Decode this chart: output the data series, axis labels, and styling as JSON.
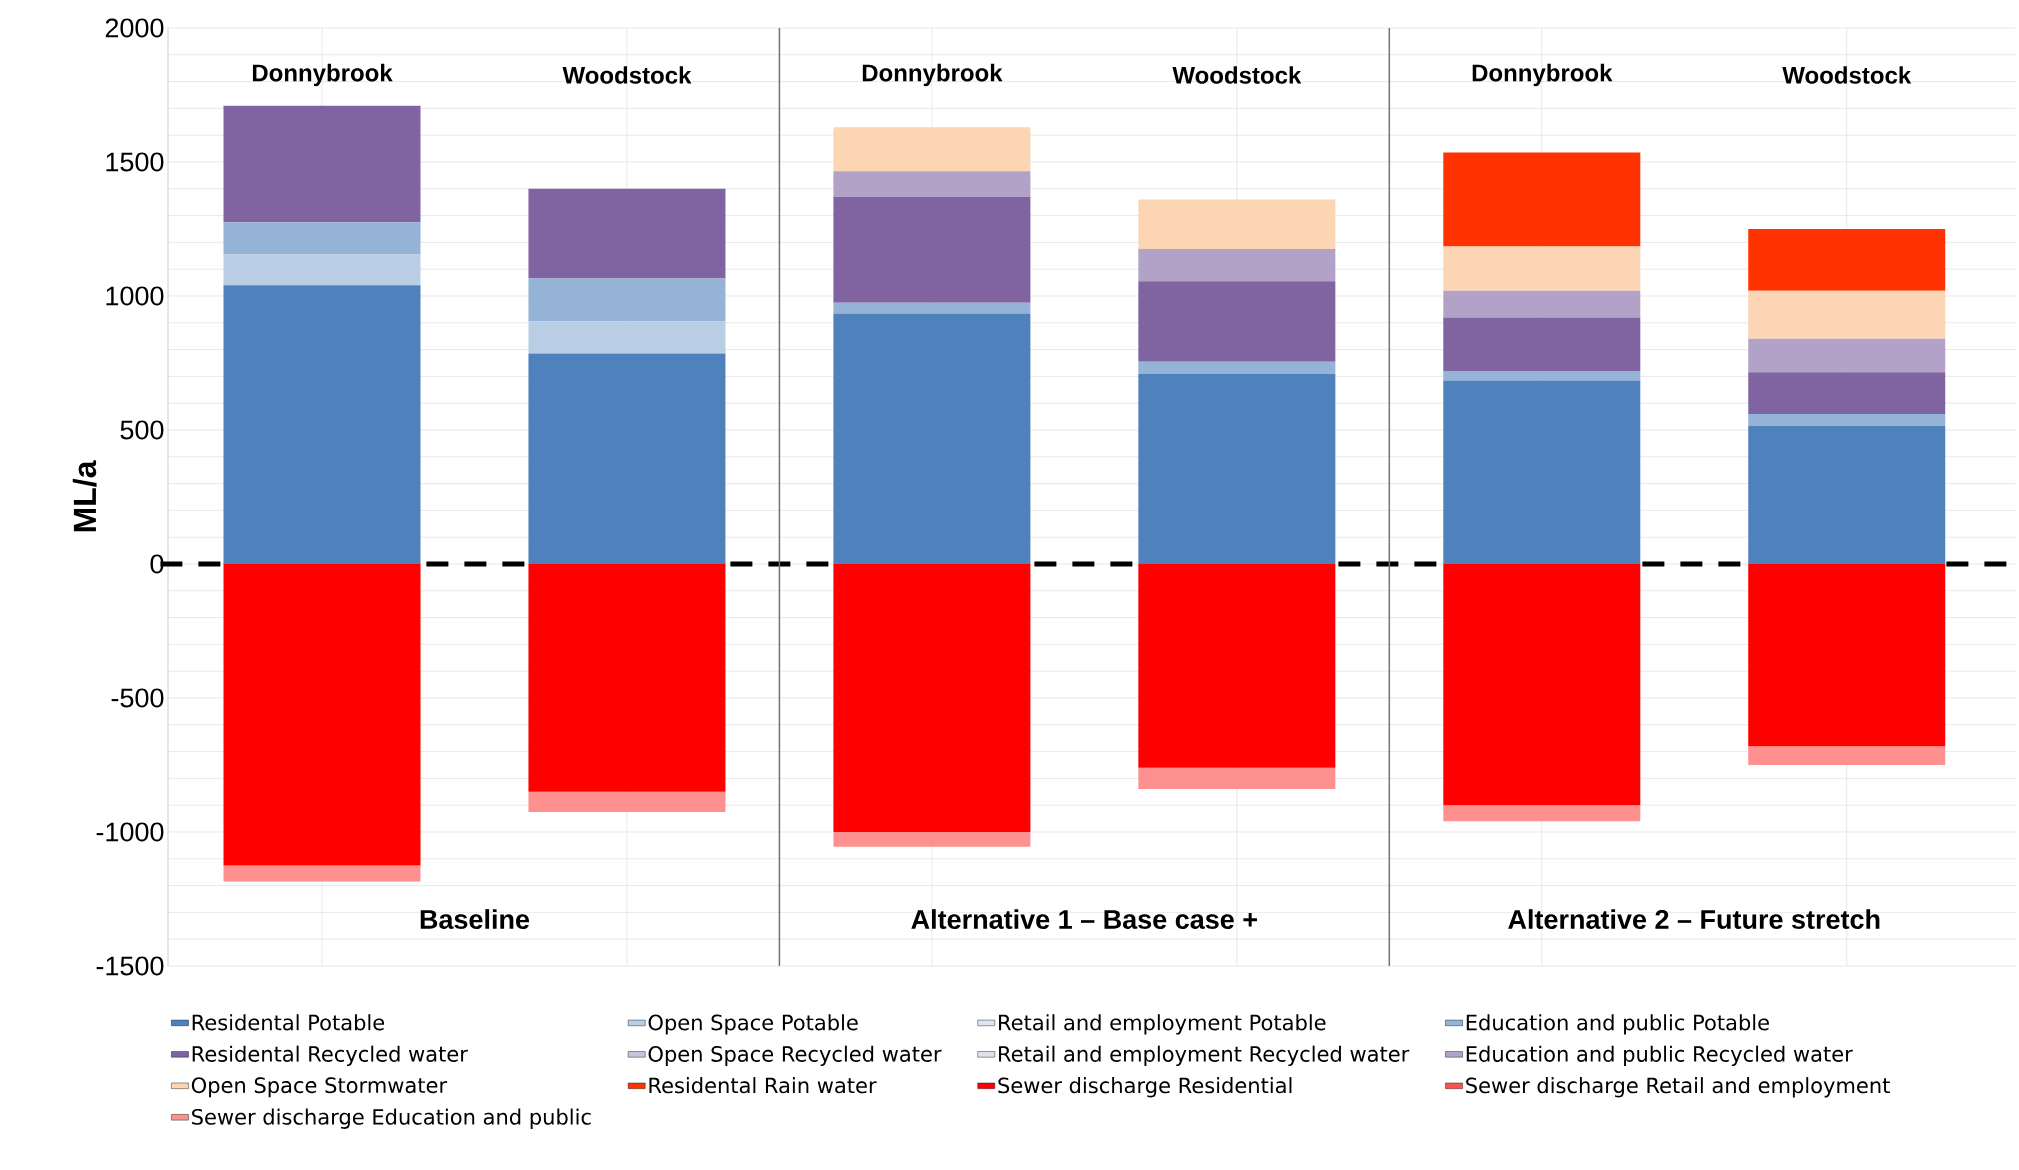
{
  "chart_data": {
    "type": "bar",
    "stacked": true,
    "ylabel": "ML/a",
    "categories": [
      "Donnybrook",
      "Woodstock",
      "Donnybrook",
      "Woodstock",
      "Donnybrook",
      "Woodstock"
    ],
    "annotations": [
      "Baseline",
      "Alternative 1 – Base case +",
      "Alternative 2 – Future stretch"
    ],
    "ylim": [
      -1500,
      2000
    ],
    "yticks": [
      -1500,
      -1000,
      -500,
      0,
      500,
      1000,
      1500,
      2000
    ],
    "grid": true,
    "legend": "bottom",
    "ref_lines": [
      {
        "axis": "y",
        "value": 0,
        "color": "#000000",
        "line_style": "dashed"
      }
    ],
    "series": [
      {
        "name": "Residental Potable",
        "color": "#4f81bd",
        "values": [
          1040,
          785,
          935,
          710,
          685,
          515
        ]
      },
      {
        "name": "Open Space Potable",
        "color": "#b9cde5",
        "values": [
          115,
          120,
          0,
          0,
          0,
          0
        ]
      },
      {
        "name": "Retail and employment Potable",
        "color": "#dce6f2",
        "values": [
          0,
          0,
          0,
          0,
          0,
          0
        ]
      },
      {
        "name": "Education and public Potable",
        "color": "#95b3d7",
        "values": [
          120,
          160,
          40,
          45,
          35,
          45
        ]
      },
      {
        "name": "Residental Recycled water",
        "color": "#8064a2",
        "values": [
          435,
          335,
          395,
          300,
          200,
          155
        ]
      },
      {
        "name": "Open Space Recycled water",
        "color": "#ccc1da",
        "values": [
          0,
          0,
          0,
          0,
          0,
          0
        ]
      },
      {
        "name": "Retail and employment Recycled water",
        "color": "#e4dfec",
        "values": [
          0,
          0,
          0,
          0,
          0,
          0
        ]
      },
      {
        "name": "Education and public Recycled water",
        "color": "#b3a2c7",
        "values": [
          0,
          0,
          95,
          120,
          100,
          125
        ]
      },
      {
        "name": "Open Space Stormwater",
        "color": "#fcd5b5",
        "values": [
          0,
          0,
          165,
          185,
          165,
          180
        ]
      },
      {
        "name": "Residental Rain water",
        "color": "#ff3300",
        "values": [
          0,
          0,
          0,
          0,
          350,
          230
        ]
      },
      {
        "name": "Sewer discharge Residential",
        "color": "#ff0000",
        "values": [
          -1125,
          -850,
          -1000,
          -760,
          -900,
          -680
        ]
      },
      {
        "name": "Sewer discharge Retail and employment",
        "color": "#ff5050",
        "values": [
          0,
          0,
          0,
          0,
          0,
          0
        ]
      },
      {
        "name": "Sewer discharge Education and public",
        "color": "#ff9090",
        "values": [
          -60,
          -75,
          -55,
          -80,
          -60,
          -70
        ]
      }
    ]
  }
}
